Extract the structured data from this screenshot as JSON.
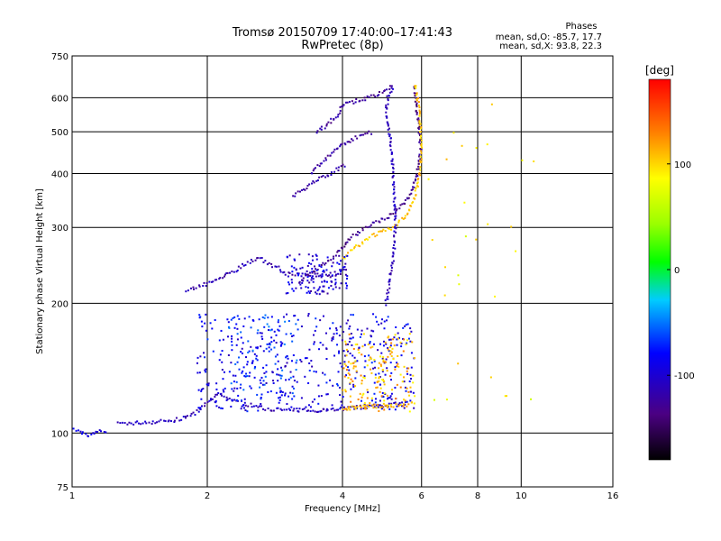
{
  "chart_data": {
    "type": "scatter",
    "title": "Tromsø 20150709 17:40:00–17:41:43",
    "subtitle": "RwPretec (8p)",
    "xlabel": "Frequency [MHz]",
    "ylabel": "Stationary phase Virtual Height [km]",
    "x_scale": "log2",
    "y_scale": "log",
    "xlim": [
      1,
      16
    ],
    "ylim": [
      75,
      750
    ],
    "x_ticks": [
      1,
      2,
      4,
      6,
      8,
      10,
      16
    ],
    "x_tick_labels": [
      "1",
      "2",
      "4",
      "6",
      "8",
      "10",
      "16"
    ],
    "y_ticks": [
      75,
      100,
      200,
      300,
      400,
      500,
      600,
      750
    ],
    "y_tick_labels": [
      "75",
      "100",
      "200",
      "300",
      "400",
      "500",
      "600",
      "750"
    ],
    "grid": true,
    "phase_stats": {
      "heading": "Phases",
      "line_o": "mean, sd,O: -85.7, 17.7",
      "line_x": "mean, sd,X:  93.8, 22.3"
    },
    "colorbar": {
      "label": "[deg]",
      "range": [
        -180,
        180
      ],
      "ticks": [
        100,
        0,
        -100
      ],
      "tick_labels": [
        "100",
        "0",
        "-100"
      ]
    },
    "traces": [
      {
        "kind": "line",
        "phase": -110,
        "points": [
          [
            1.27,
            105
          ],
          [
            1.5,
            106
          ],
          [
            1.7,
            107
          ],
          [
            1.85,
            110
          ],
          [
            2.0,
            117
          ],
          [
            2.1,
            123
          ],
          [
            2.2,
            121
          ],
          [
            2.35,
            118
          ],
          [
            2.5,
            116
          ],
          [
            2.7,
            114
          ],
          [
            3.0,
            113
          ],
          [
            3.5,
            113
          ],
          [
            4.0,
            114
          ],
          [
            4.5,
            115
          ],
          [
            5.0,
            116
          ],
          [
            5.5,
            117
          ]
        ]
      },
      {
        "kind": "line",
        "phase": -95,
        "points": [
          [
            1.0,
            102
          ],
          [
            1.05,
            100
          ],
          [
            1.1,
            99
          ],
          [
            1.15,
            101
          ],
          [
            1.2,
            100
          ]
        ]
      },
      {
        "kind": "cloud",
        "phase": -90,
        "x": [
          1.9,
          5.8
        ],
        "y": [
          112,
          190
        ],
        "n": 420
      },
      {
        "kind": "cloud",
        "phase": -70,
        "x": [
          2.2,
          3.2
        ],
        "y": [
          118,
          190
        ],
        "n": 120
      },
      {
        "kind": "cloud",
        "phase": 110,
        "x": [
          4.0,
          5.8
        ],
        "y": [
          112,
          170
        ],
        "n": 160
      },
      {
        "kind": "line",
        "phase": 110,
        "points": [
          [
            4.0,
            114
          ],
          [
            4.5,
            115
          ],
          [
            5.0,
            116
          ],
          [
            5.5,
            116
          ],
          [
            5.8,
            117
          ]
        ]
      },
      {
        "kind": "line",
        "phase": -115,
        "points": [
          [
            1.8,
            215
          ],
          [
            1.95,
            220
          ],
          [
            2.1,
            227
          ],
          [
            2.25,
            235
          ],
          [
            2.4,
            245
          ],
          [
            2.6,
            255
          ],
          [
            2.8,
            245
          ],
          [
            3.0,
            235
          ],
          [
            3.3,
            232
          ],
          [
            3.7,
            232
          ],
          [
            4.0,
            233
          ]
        ]
      },
      {
        "kind": "line",
        "phase": -130,
        "points": [
          [
            3.2,
            225
          ],
          [
            3.5,
            240
          ],
          [
            3.8,
            255
          ],
          [
            4.0,
            270
          ],
          [
            4.2,
            285
          ],
          [
            4.5,
            300
          ],
          [
            4.8,
            310
          ],
          [
            5.1,
            320
          ],
          [
            5.4,
            335
          ],
          [
            5.7,
            360
          ],
          [
            5.9,
            410
          ],
          [
            6.0,
            470
          ]
        ]
      },
      {
        "kind": "line",
        "phase": -135,
        "points": [
          [
            5.95,
            470
          ],
          [
            5.9,
            520
          ],
          [
            5.85,
            570
          ],
          [
            5.8,
            620
          ],
          [
            5.75,
            645
          ]
        ]
      },
      {
        "kind": "line",
        "phase": 105,
        "points": [
          [
            4.0,
            255
          ],
          [
            4.3,
            270
          ],
          [
            4.6,
            285
          ],
          [
            5.0,
            295
          ],
          [
            5.3,
            305
          ],
          [
            5.6,
            325
          ],
          [
            5.8,
            355
          ],
          [
            5.95,
            400
          ],
          [
            6.0,
            470
          ],
          [
            5.95,
            540
          ],
          [
            5.85,
            620
          ],
          [
            5.8,
            650
          ]
        ]
      },
      {
        "kind": "line",
        "phase": -120,
        "points": [
          [
            3.1,
            355
          ],
          [
            3.3,
            370
          ],
          [
            3.5,
            385
          ],
          [
            3.7,
            395
          ],
          [
            3.9,
            410
          ],
          [
            4.1,
            420
          ]
        ]
      },
      {
        "kind": "line",
        "phase": -120,
        "points": [
          [
            3.4,
            400
          ],
          [
            3.6,
            425
          ],
          [
            3.8,
            445
          ],
          [
            4.0,
            465
          ],
          [
            4.2,
            480
          ],
          [
            4.5,
            495
          ],
          [
            4.7,
            500
          ]
        ]
      },
      {
        "kind": "line",
        "phase": -125,
        "points": [
          [
            3.5,
            500
          ],
          [
            3.7,
            520
          ],
          [
            3.9,
            545
          ],
          [
            4.0,
            575
          ],
          [
            4.3,
            590
          ],
          [
            4.6,
            600
          ],
          [
            4.9,
            620
          ],
          [
            5.2,
            640
          ]
        ]
      },
      {
        "kind": "line",
        "phase": -110,
        "points": [
          [
            5.0,
            200
          ],
          [
            5.2,
            255
          ],
          [
            5.25,
            310
          ],
          [
            5.2,
            380
          ],
          [
            5.15,
            450
          ],
          [
            5.05,
            520
          ],
          [
            5.0,
            560
          ],
          [
            5.05,
            600
          ],
          [
            5.2,
            640
          ]
        ]
      },
      {
        "kind": "cloud",
        "phase": -100,
        "x": [
          3.0,
          4.1
        ],
        "y": [
          210,
          260
        ],
        "n": 120
      },
      {
        "kind": "cloud",
        "phase": 90,
        "x": [
          6.2,
          11.0
        ],
        "y": [
          100,
          620
        ],
        "n": 28
      }
    ]
  }
}
